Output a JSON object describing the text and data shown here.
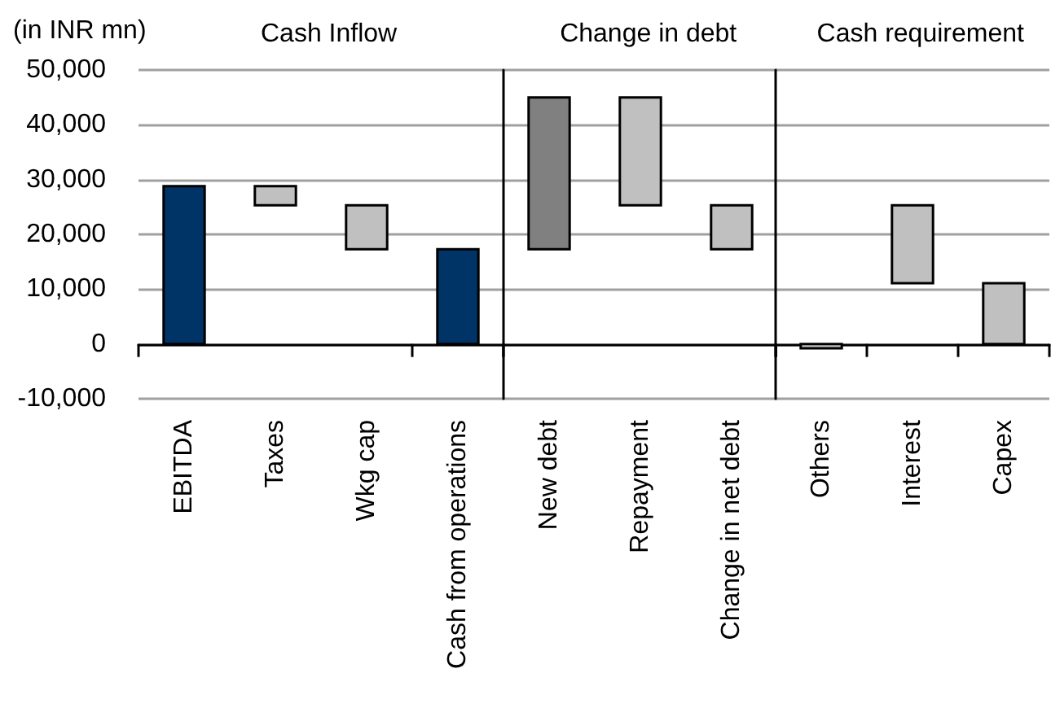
{
  "chart_data": [
    {
      "type": "bar",
      "title": "Cash Inflow",
      "ylabel": "(in INR mn)",
      "categories": [
        "EBITDA",
        "Taxes",
        "Wkg cap",
        "Cash from operations"
      ],
      "values": [
        28800,
        3500,
        8000,
        17300
      ],
      "base": [
        0,
        25300,
        17300,
        0
      ],
      "colors": [
        "#003366",
        "#c0c0c0",
        "#c0c0c0",
        "#003366"
      ],
      "ylim": [
        -10000,
        50000
      ],
      "yticks": [
        {
          "value": -10000,
          "label": "-10,000"
        },
        0,
        {
          "value": 10000,
          "label": "10,000"
        },
        {
          "value": 20000,
          "label": "20,000"
        },
        {
          "value": 30000,
          "label": "30,000"
        },
        {
          "value": 40000,
          "label": "40,000"
        },
        {
          "value": 50000,
          "label": "50,000"
        }
      ],
      "grid": "y"
    },
    {
      "type": "bar",
      "title": "Change in debt",
      "categories": [
        "New debt",
        "Repayment",
        "Change in net debt"
      ],
      "values": [
        27700,
        19700,
        8000
      ],
      "base": [
        17300,
        25300,
        17300
      ],
      "colors": [
        "#808080",
        "#c0c0c0",
        "#c0c0c0"
      ],
      "ylim": [
        -10000,
        50000
      ],
      "yticks": [
        -10000,
        0,
        10000,
        20000,
        30000,
        40000,
        50000
      ],
      "grid": "y",
      "tick_labels": "x"
    },
    {
      "type": "bar",
      "title": "Cash requirement",
      "categories": [
        "Others",
        "Interest",
        "Capex"
      ],
      "values": [
        -800,
        14200,
        11100
      ],
      "base": [
        0,
        11100,
        0
      ],
      "colors": [
        "#c0c0c0",
        "#c0c0c0",
        "#c0c0c0"
      ],
      "ylim": [
        -10000,
        50000
      ],
      "yticks": [
        -10000,
        0,
        10000,
        20000,
        30000,
        40000,
        50000
      ],
      "grid": "y",
      "tick_labels": "x"
    }
  ]
}
